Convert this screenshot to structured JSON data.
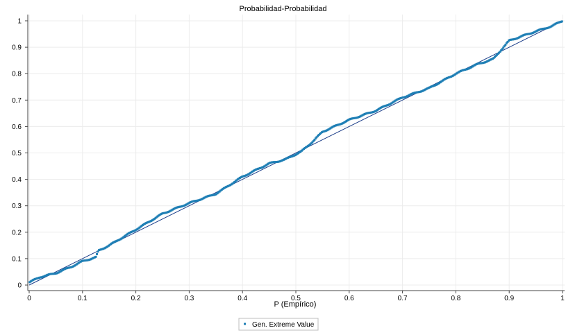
{
  "chart_data": {
    "type": "scatter",
    "title": "Probabilidad-Probabilidad",
    "xlabel": "P (Empírico)",
    "ylabel": "",
    "xlim": [
      0,
      1
    ],
    "ylim": [
      0,
      1
    ],
    "x_ticks": [
      "0",
      "0.1",
      "0.2",
      "0.3",
      "0.4",
      "0.5",
      "0.6",
      "0.7",
      "0.8",
      "0.9",
      "1"
    ],
    "y_ticks": [
      "0",
      "0.1",
      "0.2",
      "0.3",
      "0.4",
      "0.5",
      "0.6",
      "0.7",
      "0.8",
      "0.9",
      "1"
    ],
    "grid": true,
    "legend_position": "bottom-center",
    "colors": {
      "points": "#1f7fb5",
      "reference_line": "#1e3f8a",
      "grid": "#ececec",
      "axis": "#444444"
    },
    "reference_line": {
      "from": [
        0,
        0
      ],
      "to": [
        1,
        1
      ]
    },
    "series": [
      {
        "name": "Gen. Extreme Value",
        "curve": [
          [
            0.0,
            0.01
          ],
          [
            0.02,
            0.03
          ],
          [
            0.05,
            0.045
          ],
          [
            0.08,
            0.07
          ],
          [
            0.1,
            0.09
          ],
          [
            0.125,
            0.105
          ],
          [
            0.13,
            0.13
          ],
          [
            0.15,
            0.15
          ],
          [
            0.2,
            0.21
          ],
          [
            0.25,
            0.27
          ],
          [
            0.3,
            0.31
          ],
          [
            0.35,
            0.345
          ],
          [
            0.4,
            0.41
          ],
          [
            0.45,
            0.46
          ],
          [
            0.48,
            0.475
          ],
          [
            0.51,
            0.505
          ],
          [
            0.53,
            0.54
          ],
          [
            0.55,
            0.58
          ],
          [
            0.6,
            0.625
          ],
          [
            0.65,
            0.66
          ],
          [
            0.7,
            0.71
          ],
          [
            0.75,
            0.745
          ],
          [
            0.8,
            0.8
          ],
          [
            0.84,
            0.835
          ],
          [
            0.87,
            0.855
          ],
          [
            0.9,
            0.925
          ],
          [
            0.95,
            0.96
          ],
          [
            0.98,
            0.98
          ],
          [
            1.0,
            1.0
          ]
        ],
        "n_points": 500
      }
    ]
  }
}
